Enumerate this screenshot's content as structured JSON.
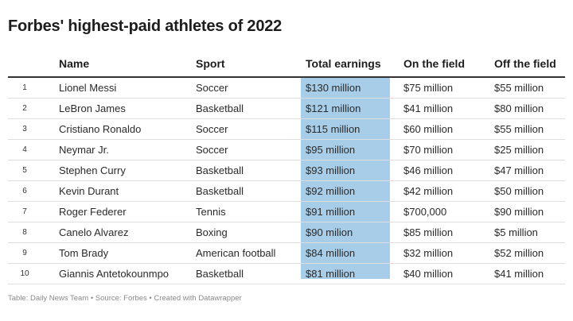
{
  "chart_data": {
    "type": "table",
    "title": "Forbes' highest-paid athletes of 2022",
    "columns": [
      "",
      "Name",
      "Sport",
      "Total earnings",
      "On the field",
      "Off the field"
    ],
    "rows": [
      {
        "rank": "1",
        "name": "Lionel Messi",
        "sport": "Soccer",
        "total": "$130 million",
        "field": "$75 million",
        "off": "$55 million"
      },
      {
        "rank": "2",
        "name": "LeBron James",
        "sport": "Basketball",
        "total": "$121 million",
        "field": "$41 million",
        "off": "$80 million"
      },
      {
        "rank": "3",
        "name": "Cristiano Ronaldo",
        "sport": "Soccer",
        "total": "$115 million",
        "field": "$60 million",
        "off": "$55 million"
      },
      {
        "rank": "4",
        "name": "Neymar Jr.",
        "sport": "Soccer",
        "total": "$95 million",
        "field": "$70 million",
        "off": "$25 million"
      },
      {
        "rank": "5",
        "name": "Stephen Curry",
        "sport": "Basketball",
        "total": "$93 million",
        "field": "$46 million",
        "off": "$47 million"
      },
      {
        "rank": "6",
        "name": "Kevin Durant",
        "sport": "Basketball",
        "total": "$92 million",
        "field": "$42 million",
        "off": "$50 million"
      },
      {
        "rank": "7",
        "name": "Roger Federer",
        "sport": "Tennis",
        "total": "$91 million",
        "field": "$700,000",
        "off": "$90 million"
      },
      {
        "rank": "8",
        "name": "Canelo Alvarez",
        "sport": "Boxing",
        "total": "$90 milion",
        "field": "$85 million",
        "off": "$5 million"
      },
      {
        "rank": "9",
        "name": "Tom Brady",
        "sport": "American football",
        "total": "$84 million",
        "field": "$32 million",
        "off": "$52 million"
      },
      {
        "rank": "10",
        "name": "Giannis Antetokounmpo",
        "sport": "Basketball",
        "total": "$81 million",
        "field": "$40 million",
        "off": "$41 million"
      }
    ],
    "highlight_column": "Total earnings",
    "highlight_color": "#a8cde8",
    "footer": "Table: Daily News Team • Source: Forbes • Created with Datawrapper"
  }
}
